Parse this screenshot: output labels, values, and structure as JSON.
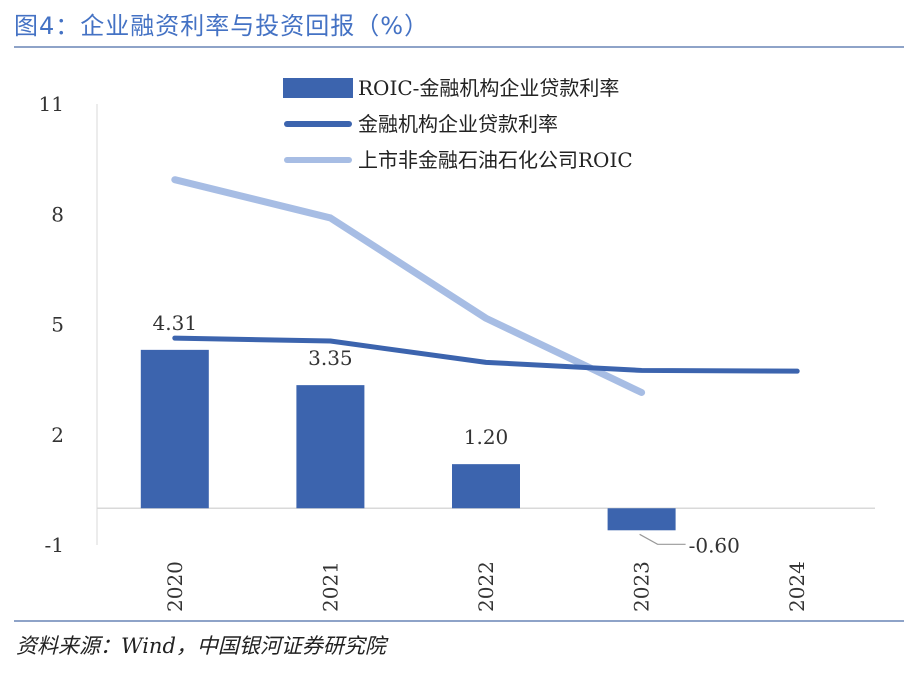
{
  "title": "图4：企业融资利率与投资回报（%）",
  "source": "资料来源：Wind，中国银河证券研究院",
  "chart_data": {
    "type": "bar",
    "categories": [
      "2020",
      "2021",
      "2022",
      "2023",
      "2024"
    ],
    "ylim": [
      -1,
      11
    ],
    "yticks": [
      -1,
      2,
      5,
      8,
      11
    ],
    "series": [
      {
        "name": "ROIC-金融机构企业贷款利率",
        "type": "bar",
        "color": "#3c64ae",
        "values": [
          4.31,
          3.35,
          1.2,
          -0.6,
          null
        ],
        "labels": [
          "4.31",
          "3.35",
          "1.20",
          "-0.60",
          ""
        ]
      },
      {
        "name": "金融机构企业贷款利率",
        "type": "line",
        "color": "#3c64ae",
        "values": [
          4.63,
          4.55,
          3.97,
          3.75,
          3.73
        ]
      },
      {
        "name": "上市非金融石油石化公司ROIC",
        "type": "line",
        "color": "#a7bde4",
        "values": [
          8.94,
          7.9,
          5.17,
          3.15,
          null
        ]
      }
    ],
    "legend_position": "top"
  }
}
